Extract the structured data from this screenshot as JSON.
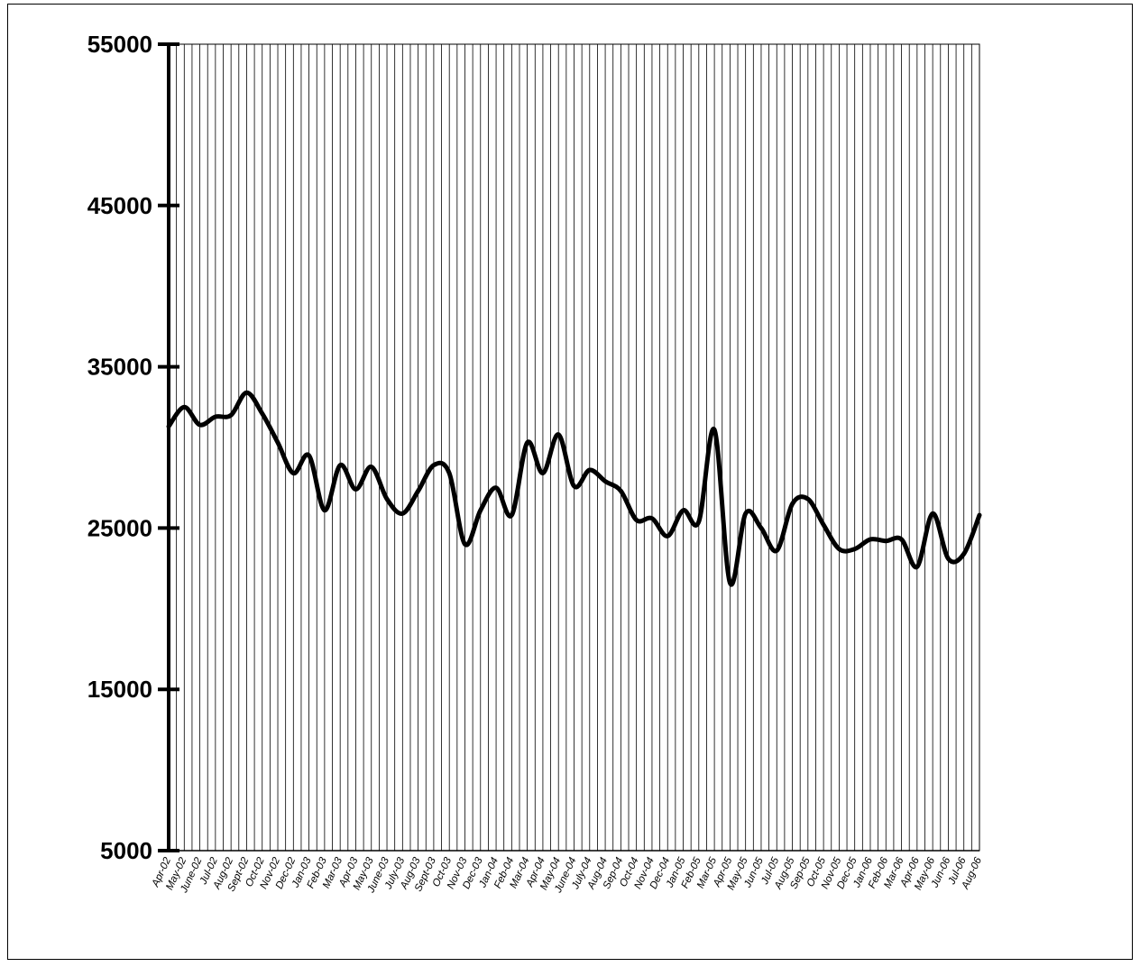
{
  "chart_data": {
    "type": "line",
    "title": "",
    "xlabel": "",
    "ylabel": "",
    "ylim": [
      5000,
      55000
    ],
    "yticks": [
      "55000",
      "45000",
      "35000",
      "25000",
      "15000",
      "5000"
    ],
    "grid": "vertical lines at every category",
    "legend": "none",
    "colors": {
      "line": "#000000",
      "grid": "#000000",
      "background": "#ffffff"
    },
    "categories": [
      "Apr-02",
      "May-02",
      "June-02",
      "Jul-02",
      "Aug-02",
      "Sept-02",
      "Oct-02",
      "Nov-02",
      "Dec-02",
      "Jan-03",
      "Feb-03",
      "Mar-03",
      "Apr-03",
      "May-03",
      "June-03",
      "July-03",
      "Aug-03",
      "Sept-03",
      "Oct-03",
      "Nov-03",
      "Dec-03",
      "Jan-04",
      "Feb-04",
      "Mar-04",
      "Apr-04",
      "May-04",
      "June-04",
      "July-04",
      "Aug-04",
      "Sep-04",
      "Oct-04",
      "Nov-04",
      "Dec-04",
      "Jan-05",
      "Feb-05",
      "Mar-05",
      "Apr-05",
      "May-05",
      "Jun-05",
      "Jul-05",
      "Aug-05",
      "Sep-05",
      "Oct-05",
      "Nov-05",
      "Dec-05",
      "Jan-06",
      "Feb-06",
      "Mar-06",
      "Apr-06",
      "May-06",
      "Jun-06",
      "Jul-06",
      "Aug-06"
    ],
    "series": [
      {
        "values": [
          31300,
          32500,
          31400,
          31900,
          32000,
          33400,
          32100,
          30300,
          28400,
          29500,
          26100,
          28900,
          27400,
          28800,
          26800,
          25900,
          27300,
          28900,
          28400,
          24000,
          26100,
          27500,
          25800,
          30300,
          28400,
          30800,
          27600,
          28600,
          27900,
          27300,
          25500,
          25600,
          24500,
          26100,
          25400,
          31100,
          21600,
          25900,
          25000,
          23600,
          26500,
          26800,
          25200,
          23700,
          23700,
          24300,
          24200,
          24300,
          22600,
          25900,
          23100,
          23400,
          25800
        ]
      }
    ]
  }
}
